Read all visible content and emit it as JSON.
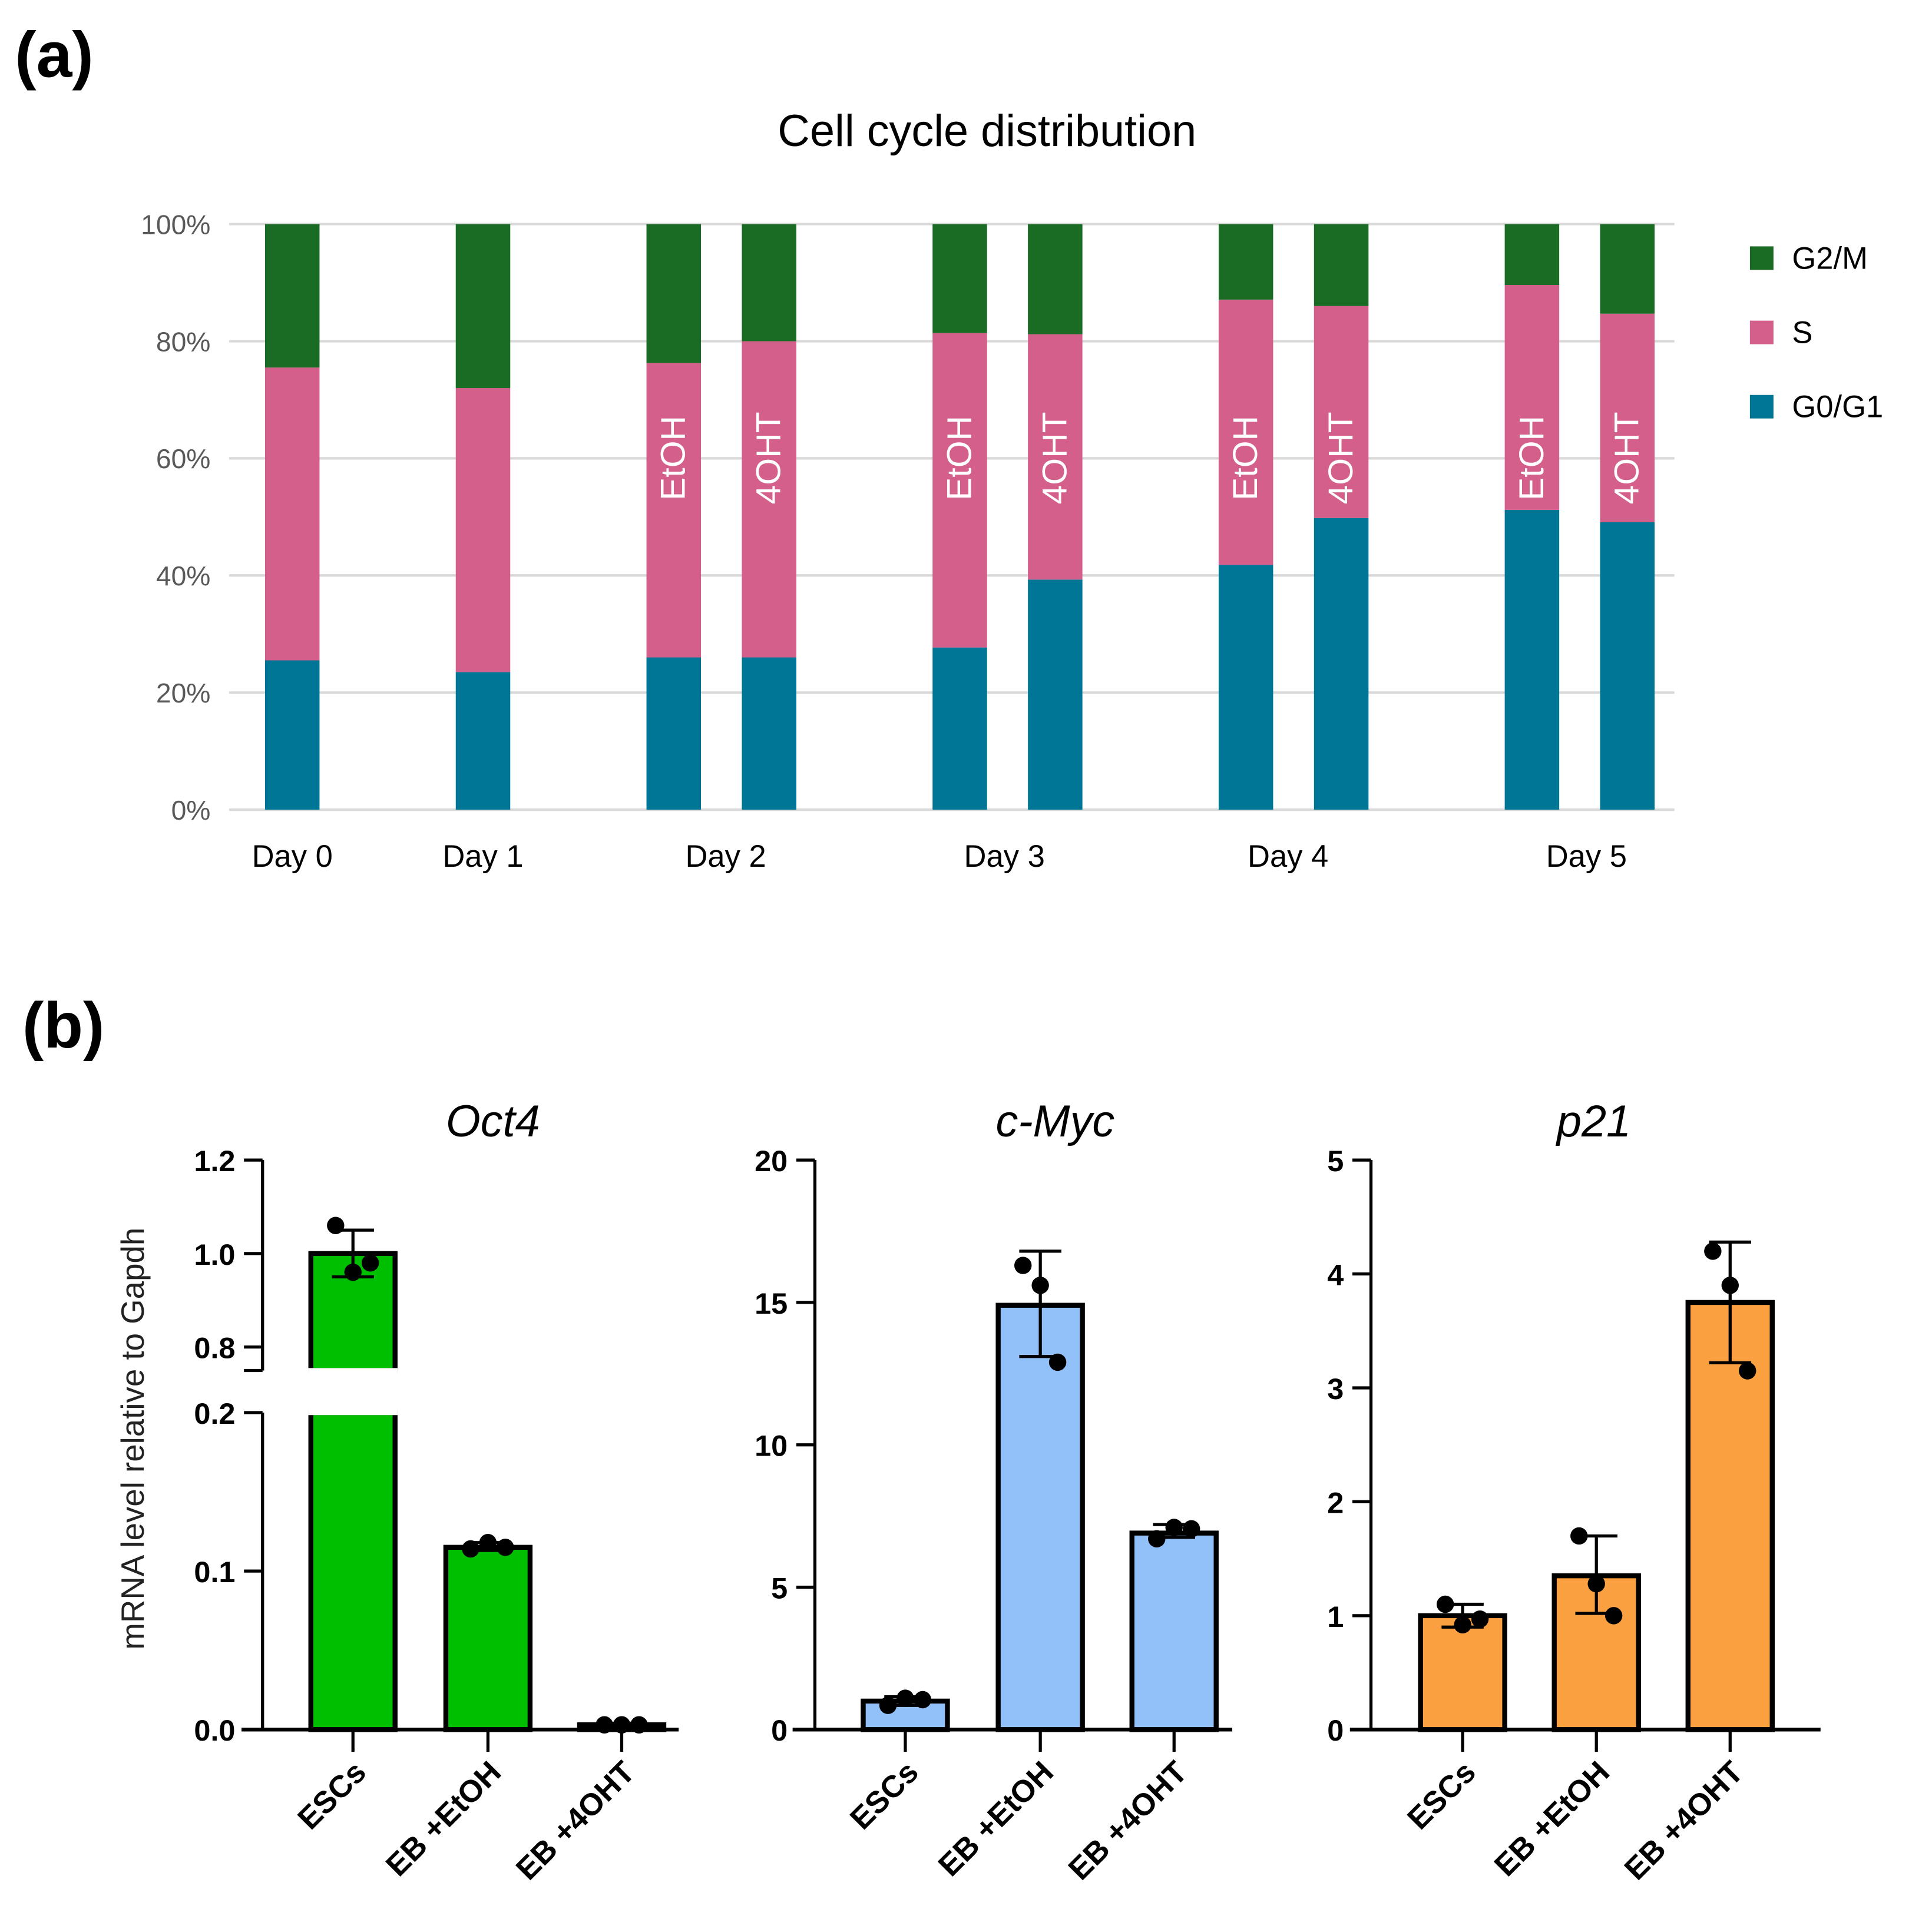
{
  "panel_labels": [
    "(a)",
    "(b)"
  ],
  "chart_data": [
    {
      "type": "bar",
      "stacked": true,
      "title": "Cell cycle distribution",
      "ylabel": "",
      "ylim": [
        0,
        100
      ],
      "yticks": [
        "0%",
        "20%",
        "40%",
        "60%",
        "80%",
        "100%"
      ],
      "grid": true,
      "legend_position": "right",
      "groups": [
        "Day 0",
        "Day 1",
        "Day 2",
        "Day 3",
        "Day 4",
        "Day 5"
      ],
      "bars": [
        {
          "group": "Day 0",
          "label": "",
          "values": [
            25.5,
            50.0,
            24.5
          ]
        },
        {
          "group": "Day 1",
          "label": "",
          "values": [
            23.5,
            48.5,
            28.0
          ]
        },
        {
          "group": "Day 2",
          "label": "EtOH",
          "values": [
            26.0,
            50.3,
            23.7
          ]
        },
        {
          "group": "Day 2",
          "label": "4OHT",
          "values": [
            26.0,
            54.0,
            20.0
          ]
        },
        {
          "group": "Day 3",
          "label": "EtOH",
          "values": [
            27.7,
            53.7,
            18.6
          ]
        },
        {
          "group": "Day 3",
          "label": "4OHT",
          "values": [
            39.3,
            41.9,
            18.8
          ]
        },
        {
          "group": "Day 4",
          "label": "EtOH",
          "values": [
            41.8,
            45.3,
            12.9
          ]
        },
        {
          "group": "Day 4",
          "label": "4OHT",
          "values": [
            49.8,
            36.2,
            14.0
          ]
        },
        {
          "group": "Day 5",
          "label": "EtOH",
          "values": [
            51.2,
            38.4,
            10.4
          ]
        },
        {
          "group": "Day 5",
          "label": "4OHT",
          "values": [
            49.1,
            35.6,
            15.3
          ]
        }
      ],
      "series": [
        {
          "name": "G0/G1",
          "color": "#007697"
        },
        {
          "name": "S",
          "color": "#D35F8A"
        },
        {
          "name": "G2/M",
          "color": "#1A6B24"
        }
      ],
      "legend_order": [
        "G2/M",
        "S",
        "G0/G1"
      ]
    },
    {
      "type": "bar",
      "title": "Oct4",
      "ylabel": "mRNA level relative to Gapdh",
      "broken_axis": {
        "lower": [
          0,
          0.2
        ],
        "upper": [
          0.75,
          1.2
        ]
      },
      "yticks": [
        0.0,
        0.1,
        0.2,
        0.8,
        1.0,
        1.2
      ],
      "ytick_labels": [
        "0.0",
        "0.1",
        "0.2",
        "0.8",
        "1.0",
        "1.2"
      ],
      "color": "#00BF00",
      "categories": [
        "ESCs",
        "EB +EtOH",
        "EB +4OHT"
      ],
      "values": [
        1.0,
        0.115,
        0.003
      ],
      "error": [
        [
          0.95,
          1.05
        ],
        [
          0.113,
          0.118
        ],
        [
          0.002,
          0.004
        ]
      ],
      "points": [
        [
          1.06,
          0.96,
          0.98
        ],
        [
          0.114,
          0.118,
          0.115
        ],
        [
          0.003,
          0.003,
          0.003
        ]
      ]
    },
    {
      "type": "bar",
      "title": "c-Myc",
      "ylim": [
        0,
        20
      ],
      "yticks": [
        0,
        5,
        10,
        15,
        20
      ],
      "ytick_labels": [
        "0",
        "5",
        "10",
        "15",
        "20"
      ],
      "color": "#92C0F8",
      "categories": [
        "ESCs",
        "EB +EtOH",
        "EB +4OHT"
      ],
      "values": [
        1.0,
        14.9,
        6.9
      ],
      "error": [
        [
          0.85,
          1.15
        ],
        [
          13.1,
          16.8
        ],
        [
          6.75,
          7.2
        ]
      ],
      "points": [
        [
          0.85,
          1.1,
          1.05
        ],
        [
          16.3,
          15.6,
          12.9
        ],
        [
          6.7,
          7.1,
          7.05
        ]
      ]
    },
    {
      "type": "bar",
      "title": "p21",
      "ylim": [
        0,
        5
      ],
      "yticks": [
        0,
        1,
        2,
        3,
        4,
        5
      ],
      "ytick_labels": [
        "0",
        "1",
        "2",
        "3",
        "4",
        "5"
      ],
      "color": "#FBA040",
      "categories": [
        "ESCs",
        "EB +EtOH",
        "EB +4OHT"
      ],
      "values": [
        1.0,
        1.35,
        3.75
      ],
      "error": [
        [
          0.9,
          1.1
        ],
        [
          1.02,
          1.7
        ],
        [
          3.22,
          4.28
        ]
      ],
      "points": [
        [
          1.1,
          0.92,
          0.97
        ],
        [
          1.7,
          1.28,
          1.0
        ],
        [
          4.2,
          3.9,
          3.15
        ]
      ]
    }
  ]
}
